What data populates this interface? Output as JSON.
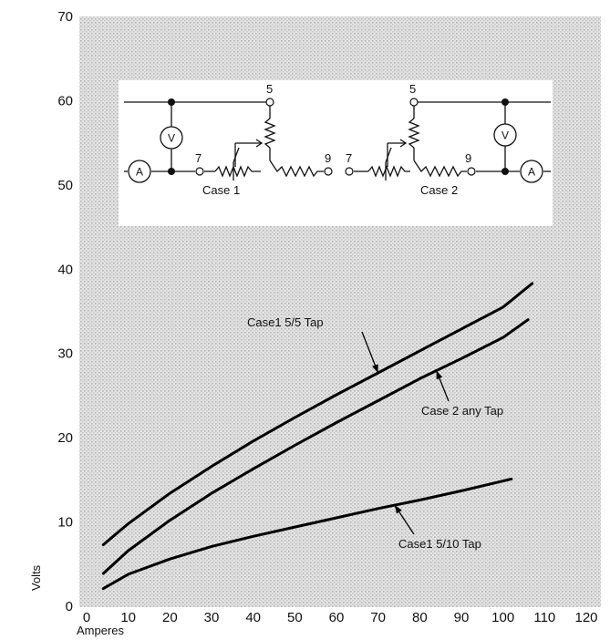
{
  "chart_data": {
    "type": "line",
    "xlabel": "Amperes",
    "ylabel": "Volts",
    "xlim": [
      0,
      120
    ],
    "ylim": [
      0,
      70
    ],
    "x_ticks": [
      0,
      10,
      20,
      30,
      40,
      50,
      60,
      70,
      80,
      90,
      100,
      110,
      120
    ],
    "y_ticks": [
      0,
      10,
      20,
      30,
      40,
      50,
      60,
      70
    ],
    "grid": false,
    "series": [
      {
        "name": "Case1 5/5 Tap",
        "x": [
          4,
          10,
          20,
          30,
          40,
          50,
          60,
          70,
          80,
          90,
          100,
          107
        ],
        "y": [
          7.3,
          9.8,
          13.4,
          16.6,
          19.6,
          22.4,
          25.1,
          27.7,
          30.3,
          32.9,
          35.5,
          38.3
        ]
      },
      {
        "name": "Case 2 any Tap",
        "x": [
          4,
          10,
          20,
          30,
          40,
          50,
          60,
          70,
          80,
          90,
          100,
          106
        ],
        "y": [
          3.9,
          6.6,
          10.2,
          13.4,
          16.3,
          19.1,
          21.8,
          24.4,
          27.0,
          29.4,
          31.9,
          34.0
        ]
      },
      {
        "name": "Case1 5/10 Tap",
        "x": [
          4,
          10,
          20,
          30,
          40,
          50,
          60,
          70,
          80,
          90,
          102
        ],
        "y": [
          2.1,
          3.8,
          5.6,
          7.1,
          8.3,
          9.4,
          10.5,
          11.6,
          12.6,
          13.7,
          15.1
        ]
      }
    ],
    "annotations": [
      {
        "text": "Case1  5/5 Tap",
        "series": 0,
        "at_x": 70
      },
      {
        "text": "Case 2 any Tap",
        "series": 1,
        "at_x": 84
      },
      {
        "text": "Case1  5/10 Tap",
        "series": 2,
        "at_x": 74
      }
    ]
  },
  "inset": {
    "case1_label": "Case 1",
    "case2_label": "Case 2",
    "node_5": "5",
    "node_7": "7",
    "node_9": "9",
    "ammeter": "A",
    "voltmeter": "V"
  }
}
